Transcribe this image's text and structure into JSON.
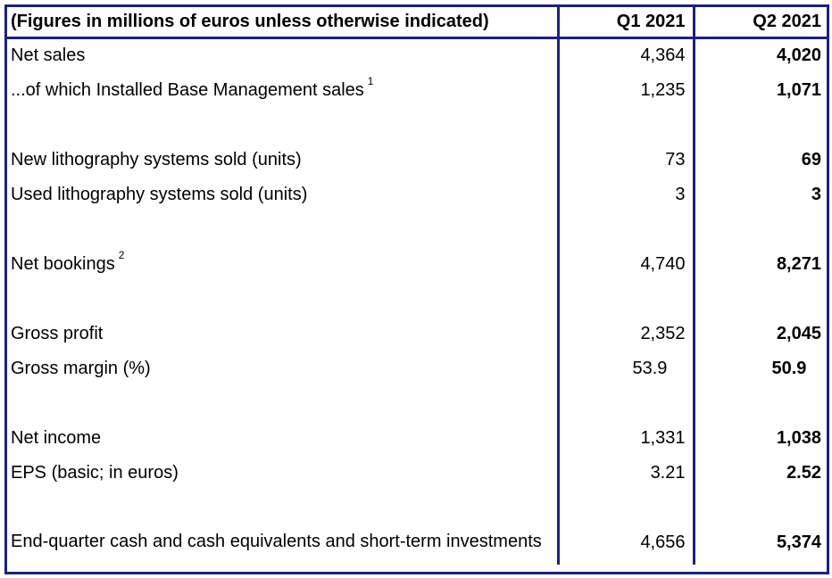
{
  "table": {
    "header": {
      "label": "(Figures in millions of euros unless otherwise indicated)",
      "q1": "Q1 2021",
      "q2": "Q2 2021"
    },
    "rows": [
      {
        "label": "Net sales",
        "sup": "",
        "q1": "4,364",
        "q2": "4,020"
      },
      {
        "label": "...of which Installed Base Management sales",
        "sup": "1",
        "q1": "1,235",
        "q2": "1,071"
      },
      {
        "label": "New lithography systems sold (units)",
        "sup": "",
        "q1": "73",
        "q2": "69"
      },
      {
        "label": "Used lithography systems sold (units)",
        "sup": "",
        "q1": "3",
        "q2": "3"
      },
      {
        "label": "Net bookings",
        "sup": "2",
        "q1": "4,740",
        "q2": "8,271"
      },
      {
        "label": "Gross profit",
        "sup": "",
        "q1": "2,352",
        "q2": "2,045"
      },
      {
        "label": "Gross margin (%)",
        "sup": "",
        "q1": "53.9",
        "q2": "50.9"
      },
      {
        "label": "Net income",
        "sup": "",
        "q1": "1,331",
        "q2": "1,038"
      },
      {
        "label": "EPS (basic; in euros)",
        "sup": "",
        "q1": "3.21",
        "q2": "2.52"
      },
      {
        "label": "End-quarter cash and cash equivalents and short-term investments",
        "sup": "",
        "q1": "4,656",
        "q2": "5,374"
      }
    ]
  },
  "colors": {
    "border": "#1a237e",
    "text": "#000000",
    "background": "#ffffff"
  }
}
